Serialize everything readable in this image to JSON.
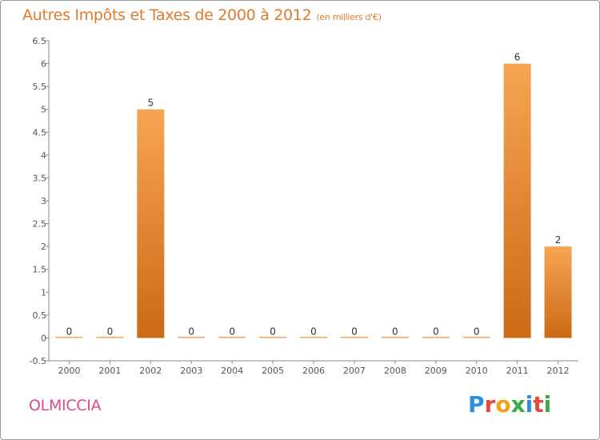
{
  "title": "Autres Impôts et Taxes de 2000 à 2012",
  "unit_note": "(en milliers d'€)",
  "commune": "OLMICCIA",
  "logo": {
    "text": "Proxiti",
    "letters": [
      {
        "ch": "P",
        "color": "#2f8fd8"
      },
      {
        "ch": "r",
        "color": "#e54b3c"
      },
      {
        "ch": "o",
        "color": "#f4a11a"
      },
      {
        "ch": "x",
        "color": "#3daa4a"
      },
      {
        "ch": "i",
        "color": "#2f8fd8"
      },
      {
        "ch": "t",
        "color": "#e54b3c"
      },
      {
        "ch": "i",
        "color": "#3daa4a"
      }
    ]
  },
  "colors": {
    "bar_light": "#f6a552",
    "bar_dark": "#cc6a16",
    "title": "#e07a2c",
    "commune": "#d84b8c",
    "axis": "#888888",
    "grid": "#dddddd"
  },
  "chart_data": {
    "type": "bar",
    "title": "Autres Impôts et Taxes de 2000 à 2012",
    "subtitle": "(en milliers d'€)",
    "categories": [
      "2000",
      "2001",
      "2002",
      "2003",
      "2004",
      "2005",
      "2006",
      "2007",
      "2008",
      "2009",
      "2010",
      "2011",
      "2012"
    ],
    "values": [
      0,
      0,
      5,
      0,
      0,
      0,
      0,
      0,
      0,
      0,
      0,
      6,
      2
    ],
    "data_labels": [
      "0",
      "0",
      "5",
      "0",
      "0",
      "0",
      "0",
      "0",
      "0",
      "0",
      "0",
      "6",
      "2"
    ],
    "y_ticks": [
      "-0.5",
      "0",
      "0.5",
      "1",
      "1.5",
      "2",
      "2.5",
      "3",
      "3.5",
      "4",
      "4.5",
      "5",
      "5.5",
      "6",
      "6.5"
    ],
    "ylim": [
      -0.5,
      6.5
    ],
    "grid": false,
    "legend": "none"
  }
}
